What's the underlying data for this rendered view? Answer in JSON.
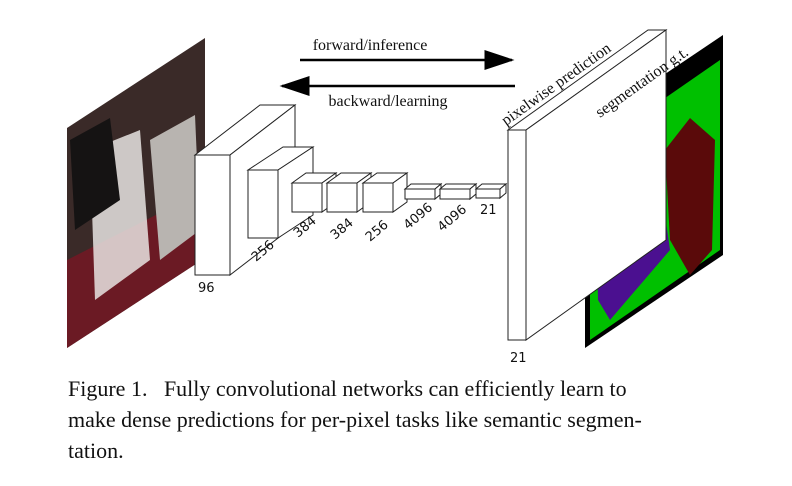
{
  "arrows": {
    "forward": "forward/inference",
    "backward": "backward/learning"
  },
  "layers": [
    {
      "label": "96"
    },
    {
      "label": "256"
    },
    {
      "label": "384"
    },
    {
      "label": "384"
    },
    {
      "label": "256"
    },
    {
      "label": "4096"
    },
    {
      "label": "4096"
    },
    {
      "label": "21"
    }
  ],
  "output": {
    "prediction": "pixelwise prediction",
    "ground_truth": "segmentation g.t.",
    "channels": "21"
  },
  "caption": {
    "lines": [
      "Figure 1.   Fully convolutional networks can efficiently learn to",
      "make dense predictions for per-pixel tasks like semantic segmen-",
      "tation."
    ]
  }
}
